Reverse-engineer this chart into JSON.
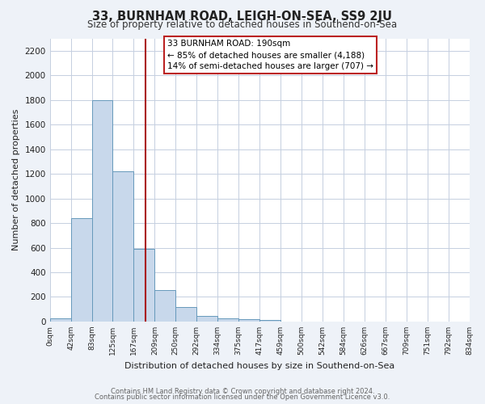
{
  "title": "33, BURNHAM ROAD, LEIGH-ON-SEA, SS9 2JU",
  "subtitle": "Size of property relative to detached houses in Southend-on-Sea",
  "xlabel": "Distribution of detached houses by size in Southend-on-Sea",
  "ylabel": "Number of detached properties",
  "bin_labels": [
    "0sqm",
    "42sqm",
    "83sqm",
    "125sqm",
    "167sqm",
    "209sqm",
    "250sqm",
    "292sqm",
    "334sqm",
    "375sqm",
    "417sqm",
    "459sqm",
    "500sqm",
    "542sqm",
    "584sqm",
    "626sqm",
    "667sqm",
    "709sqm",
    "751sqm",
    "792sqm",
    "834sqm"
  ],
  "bar_values": [
    25,
    840,
    1800,
    1220,
    590,
    255,
    120,
    45,
    25,
    20,
    10,
    0,
    0,
    0,
    0,
    0,
    0,
    0,
    0,
    0
  ],
  "bar_color": "#c8d8eb",
  "bar_edge_color": "#6699bb",
  "vline_color": "#aa1111",
  "annotation_text": "33 BURNHAM ROAD: 190sqm\n← 85% of detached houses are smaller (4,188)\n14% of semi-detached houses are larger (707) →",
  "annotation_box_color": "#ffffff",
  "annotation_box_edge": "#bb2222",
  "ylim": [
    0,
    2300
  ],
  "yticks": [
    0,
    200,
    400,
    600,
    800,
    1000,
    1200,
    1400,
    1600,
    1800,
    2000,
    2200
  ],
  "grid_color": "#c5cfe0",
  "plot_bg_color": "#ffffff",
  "fig_bg_color": "#eef2f8",
  "footnote1": "Contains HM Land Registry data © Crown copyright and database right 2024.",
  "footnote2": "Contains public sector information licensed under the Open Government Licence v3.0."
}
